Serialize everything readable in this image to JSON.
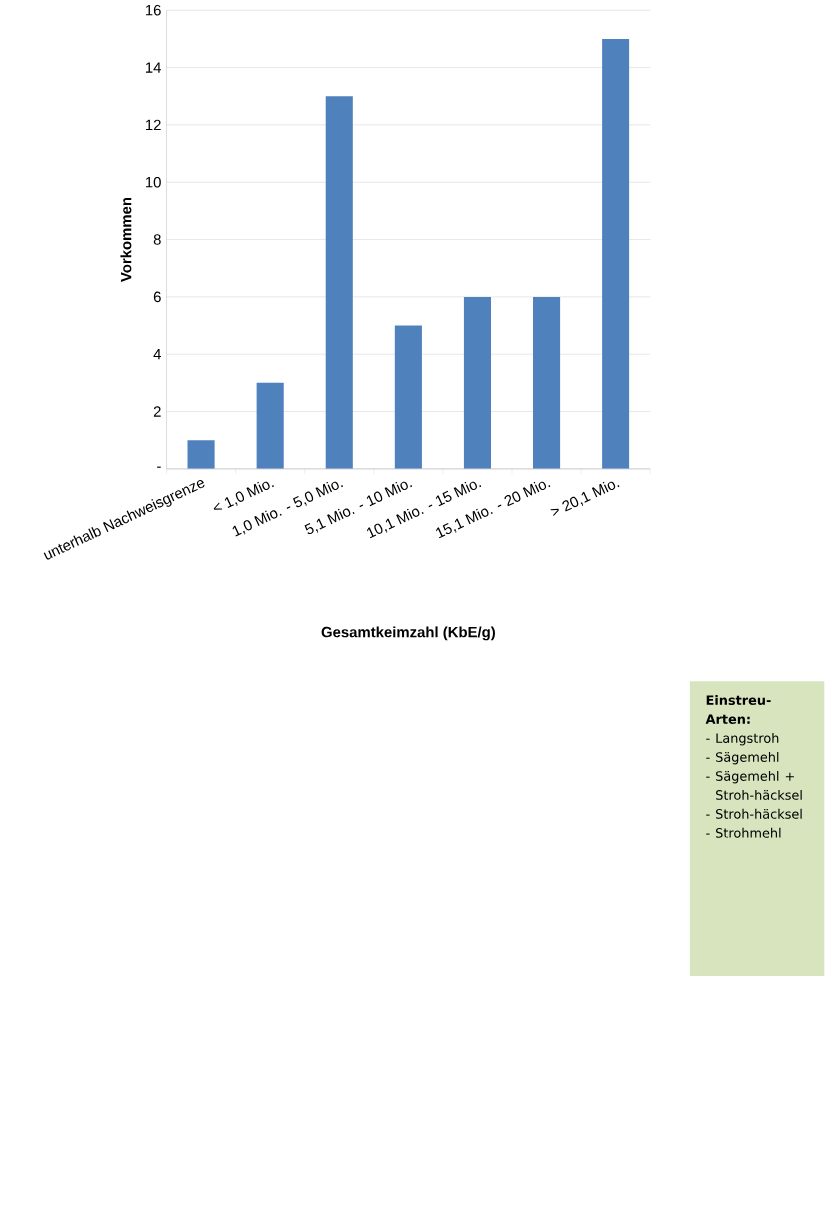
{
  "chart_data": {
    "type": "bar",
    "xlabel": "Gesamtkeimzahl (KbE/g)",
    "ylabel": "Vorkommen",
    "categories": [
      "unterhalb Nachweisgrenze",
      "< 1,0 Mio.",
      "1,0 Mio. - 5,0 Mio.",
      "5,1 Mio. - 10 Mio.",
      "10,1 Mio. - 15 Mio.",
      "15,1 Mio. - 20 Mio.",
      "> 20,1 Mio."
    ],
    "values": [
      1,
      3,
      13,
      5,
      6,
      6,
      15
    ],
    "color": "#4f81bd",
    "ylim": [
      0,
      16
    ],
    "yticks": [
      {
        "value": 0,
        "label": "-"
      },
      2,
      4,
      6,
      8,
      10,
      12,
      14,
      16
    ],
    "grid": "y",
    "annotations": [
      "Einstreu-Arten:",
      "- Langstroh",
      "- Sägemehl",
      "- Sägemehl + Stroh-häcksel",
      "- Stroh-häcksel",
      "- Strohmehl"
    ]
  }
}
